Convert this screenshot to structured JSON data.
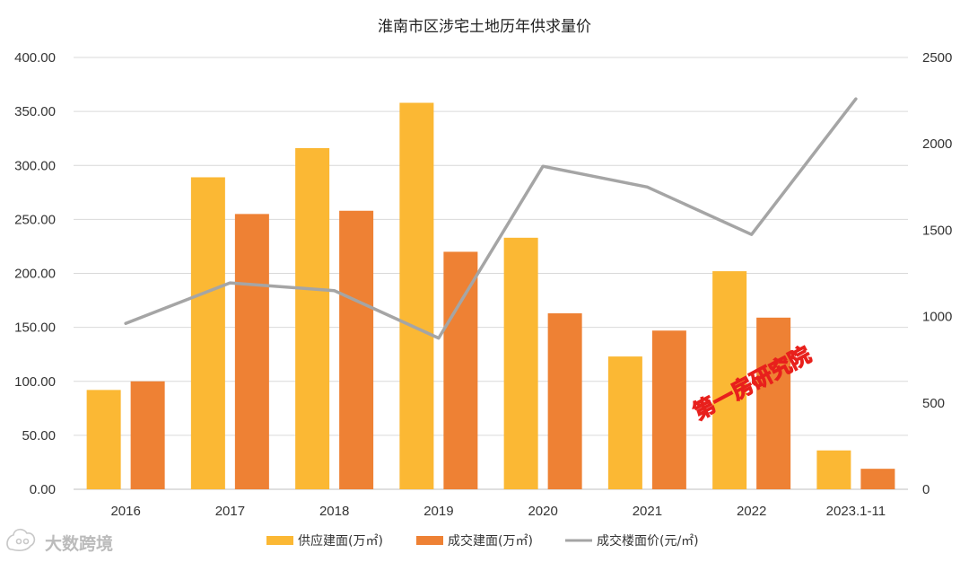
{
  "chart_data": {
    "type": "bar",
    "title": "淮南市区涉宅土地历年供求量价",
    "categories": [
      "2016",
      "2017",
      "2018",
      "2019",
      "2020",
      "2021",
      "2022",
      "2023.1-11"
    ],
    "series": [
      {
        "name": "供应建面(万㎡)",
        "type": "bar",
        "axis": "left",
        "color": "#fbb834",
        "values": [
          92,
          289,
          316,
          358,
          233,
          123,
          202,
          36
        ]
      },
      {
        "name": "成交建面(万㎡)",
        "type": "bar",
        "axis": "left",
        "color": "#ee8134",
        "values": [
          100,
          255,
          258,
          220,
          163,
          147,
          159,
          19
        ]
      },
      {
        "name": "成交楼面价(元/㎡)",
        "type": "line",
        "axis": "right",
        "color": "#a5a5a5",
        "values": [
          960,
          1195,
          1150,
          875,
          1870,
          1750,
          1475,
          2260
        ]
      }
    ],
    "y_left": {
      "min": 0,
      "max": 400,
      "step": 50,
      "tick_labels": [
        "0.00",
        "50.00",
        "100.00",
        "150.00",
        "200.00",
        "250.00",
        "300.00",
        "350.00",
        "400.00"
      ]
    },
    "y_right": {
      "min": 0,
      "max": 2500,
      "step": 500,
      "tick_labels": [
        "0",
        "500",
        "1000",
        "1500",
        "2000",
        "2500"
      ]
    },
    "grid": true,
    "legend_position": "bottom"
  },
  "watermark": {
    "text": "第一房研究院",
    "color": "#e8201c"
  },
  "logo": {
    "text": "大数跨境",
    "icon": "bubble-logo-icon"
  }
}
